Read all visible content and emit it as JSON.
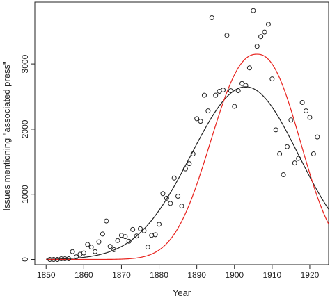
{
  "chart_data": {
    "type": "scatter",
    "title": "",
    "xlabel": "Year",
    "ylabel": "Issues mentioning \"associated press\"",
    "xlim": [
      1847,
      1925
    ],
    "ylim": [
      -80,
      3950
    ],
    "x_ticks": [
      1850,
      1860,
      1870,
      1880,
      1890,
      1900,
      1910,
      1920
    ],
    "y_ticks": [
      0,
      1000,
      2000,
      3000
    ],
    "grid": false,
    "legend": "none",
    "colors": {
      "points": "#222222",
      "fit_black": "#222222",
      "fit_red": "#e8231e"
    },
    "points": [
      [
        1851,
        0
      ],
      [
        1852,
        0
      ],
      [
        1853,
        0
      ],
      [
        1854,
        10
      ],
      [
        1855,
        10
      ],
      [
        1856,
        10
      ],
      [
        1857,
        120
      ],
      [
        1858,
        40
      ],
      [
        1859,
        80
      ],
      [
        1860,
        100
      ],
      [
        1861,
        230
      ],
      [
        1862,
        190
      ],
      [
        1863,
        120
      ],
      [
        1864,
        270
      ],
      [
        1865,
        390
      ],
      [
        1866,
        590
      ],
      [
        1867,
        200
      ],
      [
        1868,
        150
      ],
      [
        1869,
        290
      ],
      [
        1870,
        370
      ],
      [
        1871,
        350
      ],
      [
        1872,
        280
      ],
      [
        1873,
        460
      ],
      [
        1874,
        360
      ],
      [
        1875,
        470
      ],
      [
        1876,
        440
      ],
      [
        1877,
        190
      ],
      [
        1878,
        370
      ],
      [
        1879,
        380
      ],
      [
        1880,
        540
      ],
      [
        1881,
        1010
      ],
      [
        1882,
        940
      ],
      [
        1883,
        860
      ],
      [
        1884,
        1250
      ],
      [
        1885,
        970
      ],
      [
        1886,
        820
      ],
      [
        1887,
        1390
      ],
      [
        1888,
        1470
      ],
      [
        1889,
        1620
      ],
      [
        1890,
        2160
      ],
      [
        1891,
        2120
      ],
      [
        1892,
        2520
      ],
      [
        1893,
        2280
      ],
      [
        1894,
        3710
      ],
      [
        1895,
        2520
      ],
      [
        1896,
        2580
      ],
      [
        1897,
        2600
      ],
      [
        1898,
        3440
      ],
      [
        1899,
        2590
      ],
      [
        1900,
        2350
      ],
      [
        1901,
        2590
      ],
      [
        1902,
        2700
      ],
      [
        1903,
        2670
      ],
      [
        1904,
        2940
      ],
      [
        1905,
        3820
      ],
      [
        1906,
        3270
      ],
      [
        1907,
        3420
      ],
      [
        1908,
        3490
      ],
      [
        1909,
        3610
      ],
      [
        1910,
        2770
      ],
      [
        1911,
        1990
      ],
      [
        1912,
        1620
      ],
      [
        1913,
        1300
      ],
      [
        1914,
        1730
      ],
      [
        1915,
        2140
      ],
      [
        1916,
        1480
      ],
      [
        1917,
        1550
      ],
      [
        1918,
        2410
      ],
      [
        1919,
        2280
      ],
      [
        1920,
        2180
      ],
      [
        1921,
        1620
      ],
      [
        1922,
        1880
      ]
    ],
    "fit_black": {
      "peak_x": 1903,
      "peak_y": 2650,
      "sigma_left": 14.5,
      "sigma_right": 14,
      "exponent": 2
    },
    "fit_red": {
      "peak_x": 1906,
      "peak_y": 3150,
      "sigma_left": 11.8,
      "sigma_right": 11,
      "exponent": 2.3
    }
  }
}
